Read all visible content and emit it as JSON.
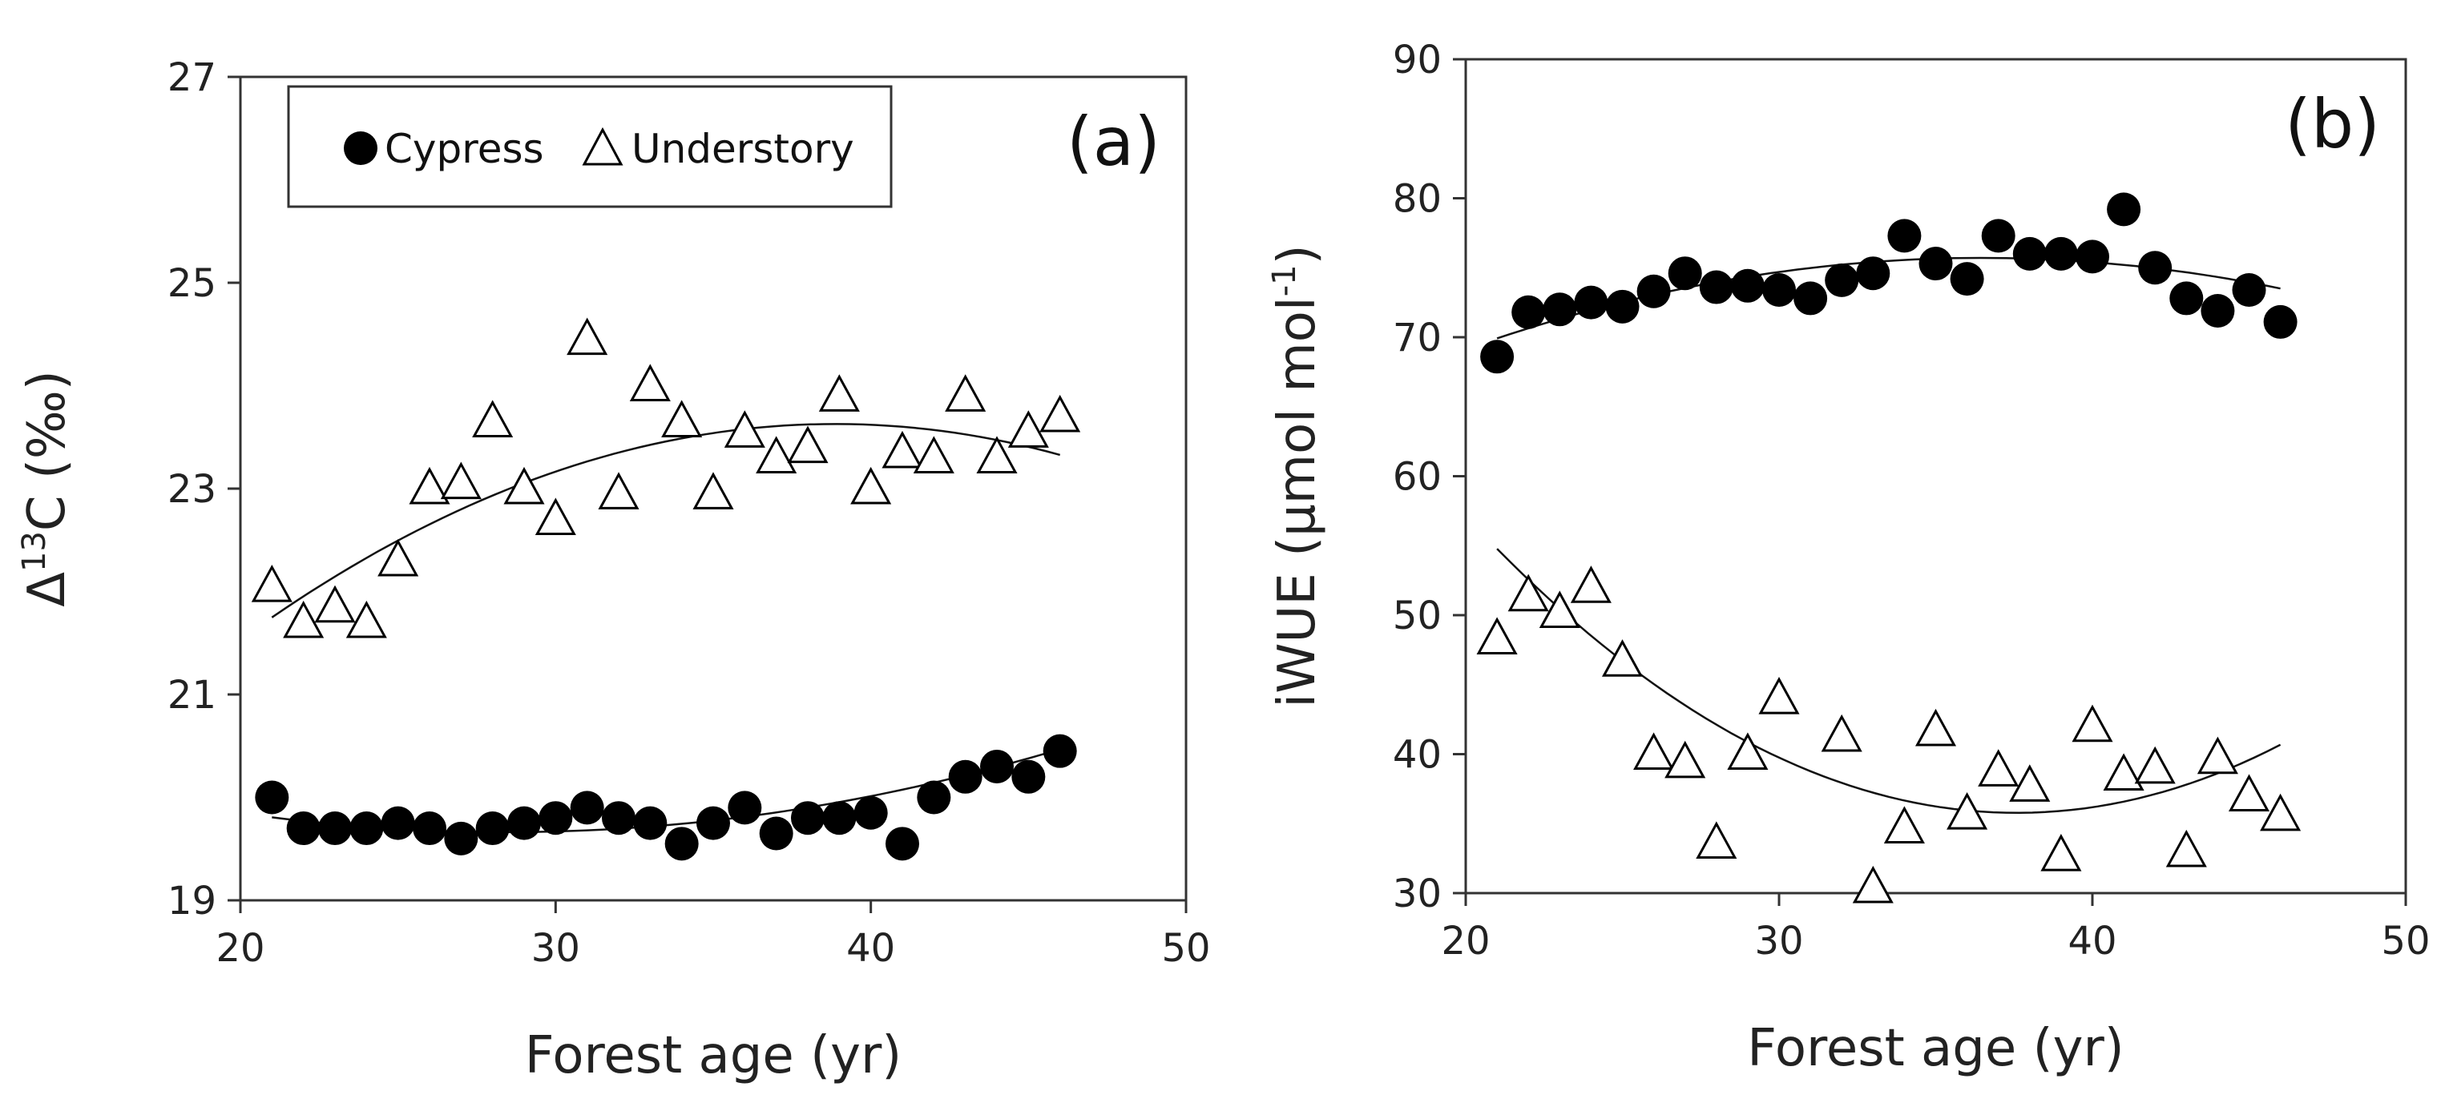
{
  "chart_data": [
    {
      "type": "scatter",
      "panel_label": "(a)",
      "xlabel": "Forest age (yr)",
      "ylabel": {
        "prefix": "Δ",
        "sup": "13",
        "suffix": "C (‰)"
      },
      "xlim": [
        20,
        50
      ],
      "ylim": [
        19,
        27
      ],
      "xticks": [
        "20",
        "30",
        "40",
        "50"
      ],
      "yticks": [
        "19",
        "21",
        "23",
        "25",
        "27"
      ],
      "legend": {
        "position": "top-left",
        "entries": [
          "Cypress",
          "Understory"
        ]
      },
      "series": [
        {
          "name": "Cypress",
          "marker": "filled-circle",
          "x": [
            21,
            22,
            23,
            24,
            25,
            26,
            27,
            28,
            29,
            30,
            31,
            32,
            33,
            34,
            35,
            36,
            37,
            38,
            39,
            40,
            41,
            42,
            43,
            44,
            45,
            46
          ],
          "y": [
            20.0,
            19.7,
            19.7,
            19.7,
            19.75,
            19.7,
            19.6,
            19.7,
            19.75,
            19.8,
            19.9,
            19.8,
            19.75,
            19.55,
            19.75,
            19.9,
            19.65,
            19.8,
            19.8,
            19.85,
            19.55,
            20.0,
            20.2,
            20.3,
            20.2,
            20.45
          ],
          "fit": [
            0.00261,
            -0.1484,
            21.772
          ]
        },
        {
          "name": "Understory",
          "marker": "open-triangle",
          "x": [
            21,
            22,
            23,
            24,
            25,
            26,
            27,
            28,
            29,
            30,
            31,
            32,
            33,
            34,
            35,
            36,
            37,
            38,
            39,
            40,
            41,
            42,
            43,
            44,
            45,
            46
          ],
          "y": [
            22.05,
            21.7,
            21.85,
            21.7,
            22.3,
            23.0,
            23.05,
            23.65,
            23.0,
            22.7,
            24.45,
            22.95,
            24.0,
            23.65,
            22.95,
            23.55,
            23.3,
            23.4,
            23.9,
            23.0,
            23.35,
            23.3,
            23.9,
            23.3,
            23.55,
            23.7
          ],
          "fit": [
            -0.00589,
            0.4578,
            14.732
          ]
        }
      ]
    },
    {
      "type": "scatter",
      "panel_label": "(b)",
      "xlabel": "Forest age (yr)",
      "ylabel": {
        "prefix": "iWUE (μmol mol",
        "sup": "-1",
        "suffix": ")"
      },
      "xlim": [
        20,
        50
      ],
      "ylim": [
        30,
        90
      ],
      "xticks": [
        "20",
        "30",
        "40",
        "50"
      ],
      "yticks": [
        "30",
        "40",
        "50",
        "60",
        "70",
        "80",
        "90"
      ],
      "series": [
        {
          "name": "Cypress",
          "marker": "filled-circle",
          "x": [
            21,
            22,
            23,
            24,
            25,
            26,
            27,
            28,
            29,
            30,
            31,
            32,
            33,
            34,
            35,
            36,
            37,
            38,
            39,
            40,
            41,
            42,
            43,
            44,
            45,
            46
          ],
          "y": [
            68.6,
            71.8,
            72.0,
            72.5,
            72.2,
            73.3,
            74.6,
            73.6,
            73.7,
            73.4,
            72.8,
            74.1,
            74.6,
            77.3,
            75.3,
            74.2,
            77.3,
            76.0,
            76.0,
            75.8,
            79.2,
            75.0,
            72.8,
            71.9,
            73.4,
            71.1
          ],
          "fit": [
            -0.0242,
            1.7648,
            43.53
          ]
        },
        {
          "name": "Understory",
          "marker": "open-triangle",
          "x": [
            21,
            22,
            23,
            24,
            25,
            26,
            27,
            28,
            29,
            30,
            31,
            32,
            33,
            34,
            35,
            36,
            37,
            38,
            39,
            40,
            41,
            42,
            43,
            44,
            45,
            46
          ],
          "y": [
            48.3,
            51.4,
            50.2,
            52.0,
            46.7,
            40.0,
            39.4,
            33.6,
            40.0,
            44.0,
            null,
            41.3,
            30.4,
            34.7,
            41.7,
            35.7,
            38.8,
            37.7,
            32.7,
            42.0,
            38.5,
            39.0,
            33.0,
            39.7,
            37.0,
            35.6
          ],
          "fit": [
            0.0691,
            -5.194,
            133.38
          ]
        }
      ]
    }
  ]
}
